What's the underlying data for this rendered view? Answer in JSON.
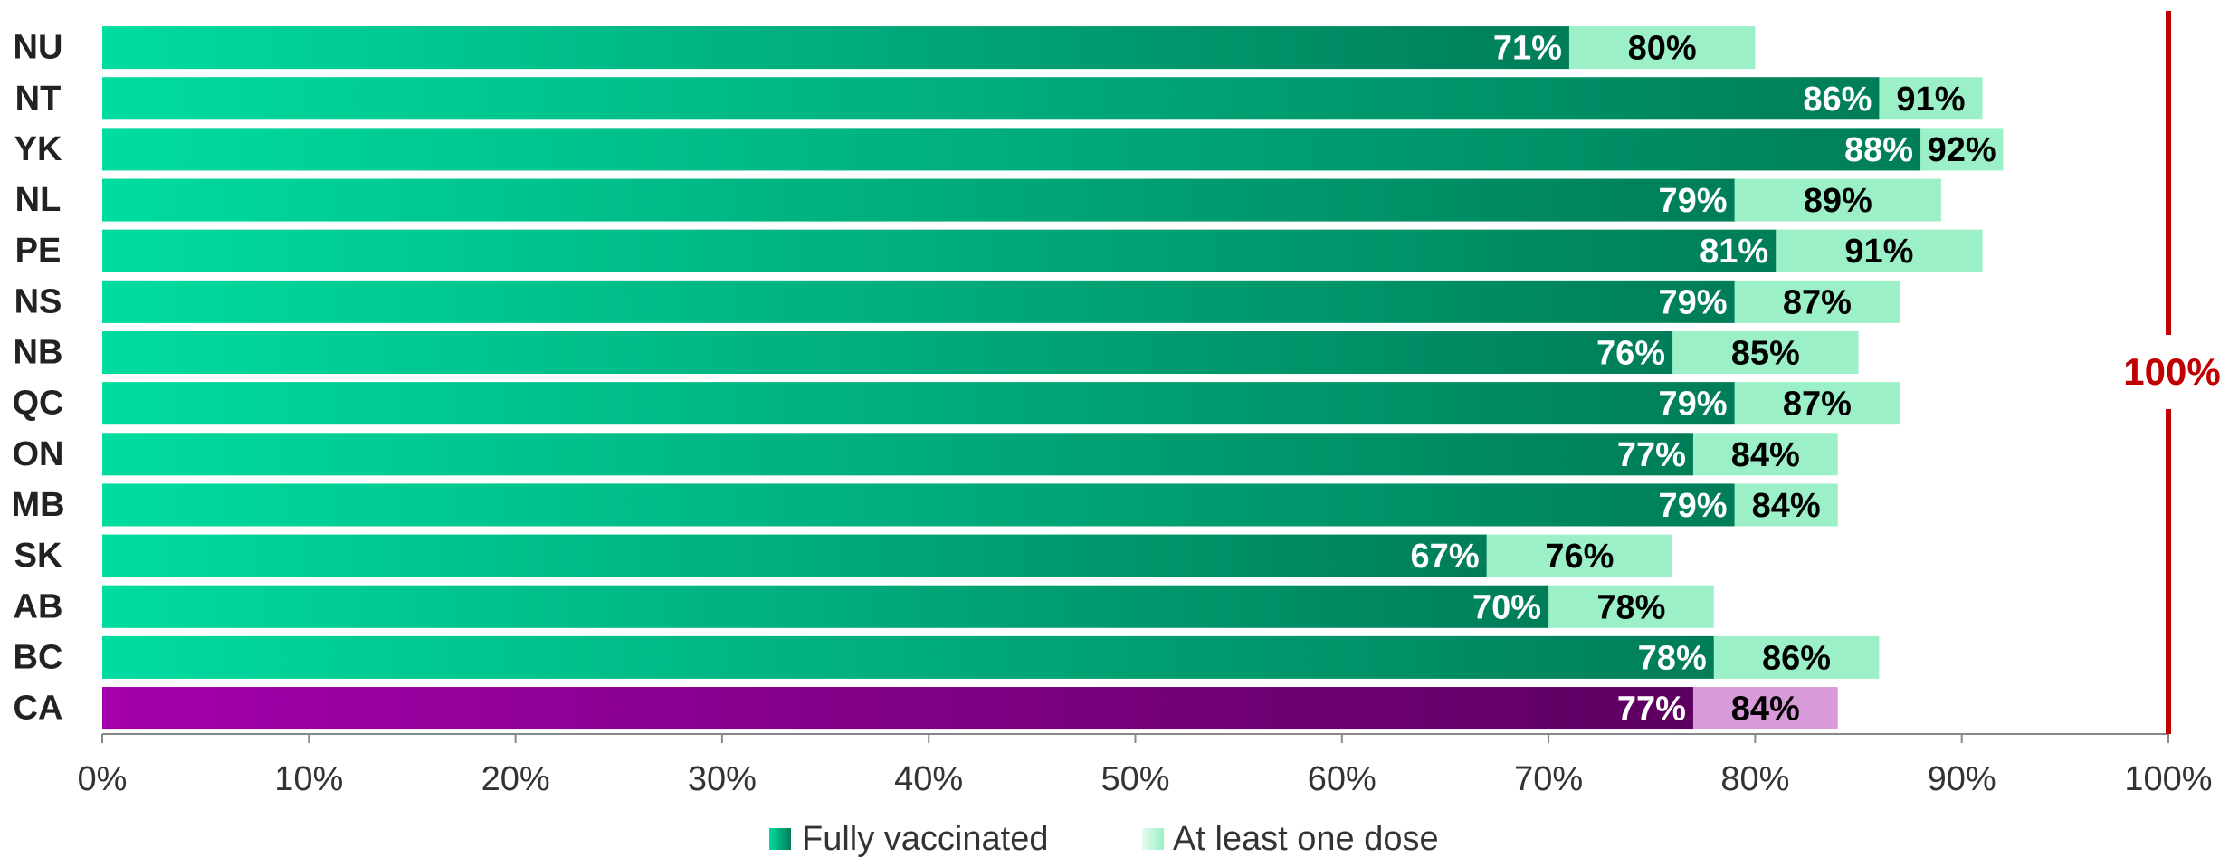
{
  "chart_data": {
    "type": "overlap-bar",
    "categories": [
      "NU",
      "NT",
      "YK",
      "NL",
      "PE",
      "NS",
      "NB",
      "QC",
      "ON",
      "MB",
      "SK",
      "AB",
      "BC",
      "CA"
    ],
    "series": [
      {
        "name": "Fully vaccinated",
        "color": [
          "#00dca0",
          "#007d58"
        ],
        "colors": [
          [
            "#00dca0",
            "#007d58"
          ],
          [
            "#00dca0",
            "#007d58"
          ],
          [
            "#00dca0",
            "#007d58"
          ],
          [
            "#00dca0",
            "#007d58"
          ],
          [
            "#00dca0",
            "#007d58"
          ],
          [
            "#00dca0",
            "#007d58"
          ],
          [
            "#00dca0",
            "#007d58"
          ],
          [
            "#00dca0",
            "#007d58"
          ],
          [
            "#00dca0",
            "#007d58"
          ],
          [
            "#00dca0",
            "#007d58"
          ],
          [
            "#00dca0",
            "#007d58"
          ],
          [
            "#00dca0",
            "#007d58"
          ],
          [
            "#00dca0",
            "#007d58"
          ],
          [
            "#a400ac",
            "#5c0060"
          ]
        ],
        "values": [
          71,
          86,
          88,
          79,
          81,
          79,
          76,
          79,
          77,
          79,
          67,
          70,
          78,
          77
        ],
        "value_labels": [
          "71%",
          "86%",
          "88%",
          "79%",
          "81%",
          "79%",
          "76%",
          "79%",
          "77%",
          "79%",
          "67%",
          "70%",
          "78%",
          "77%"
        ]
      },
      {
        "name": "At least one dose",
        "color": [
          "#e6fbf0",
          "#9bf0c8"
        ],
        "colors": [
          "#9bf0c8",
          "#9bf0c8",
          "#9bf0c8",
          "#9bf0c8",
          "#9bf0c8",
          "#9bf0c8",
          "#9bf0c8",
          "#9bf0c8",
          "#9bf0c8",
          "#9bf0c8",
          "#9bf0c8",
          "#9bf0c8",
          "#9bf0c8",
          "#d99ad9"
        ],
        "values": [
          80,
          91,
          92,
          89,
          91,
          87,
          85,
          87,
          84,
          84,
          76,
          78,
          86,
          84
        ],
        "value_labels": [
          "80%",
          "91%",
          "92%",
          "89%",
          "91%",
          "87%",
          "85%",
          "87%",
          "84%",
          "84%",
          "76%",
          "78%",
          "86%",
          "84%"
        ]
      }
    ],
    "xlim": [
      0,
      100
    ],
    "xticks": [
      {
        "value": 0,
        "label": "0%"
      },
      {
        "value": 10,
        "label": "10%"
      },
      {
        "value": 20,
        "label": "20%"
      },
      {
        "value": 30,
        "label": "30%"
      },
      {
        "value": 40,
        "label": "40%"
      },
      {
        "value": 50,
        "label": "50%"
      },
      {
        "value": 60,
        "label": "60%"
      },
      {
        "value": 70,
        "label": "70%"
      },
      {
        "value": 80,
        "label": "80%"
      },
      {
        "value": 90,
        "label": "90%"
      },
      {
        "value": 100,
        "label": "100%"
      }
    ],
    "reference_line": {
      "value": 100,
      "label": "100%",
      "color": "#c00000"
    },
    "legend": "bottom"
  }
}
